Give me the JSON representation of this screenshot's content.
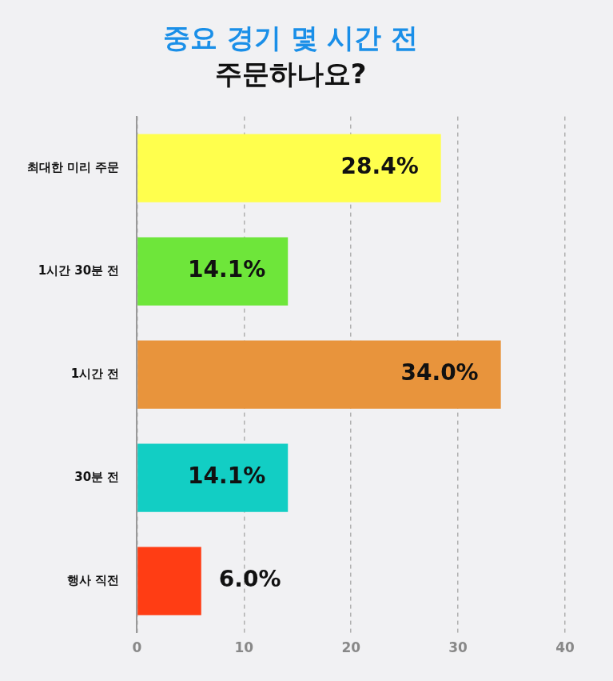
{
  "chart_data": {
    "type": "bar",
    "orientation": "horizontal",
    "title": "중요 경기 몇 시간 전",
    "subtitle": "주문하나요?",
    "categories": [
      "최대한 미리 주문",
      "1시간 30분 전",
      "1시간 전",
      "30분 전",
      "행사 직전"
    ],
    "values": [
      28.4,
      14.1,
      34.0,
      14.1,
      6.0
    ],
    "value_labels": [
      "28.4%",
      "14.1%",
      "34.0%",
      "14.1%",
      "6.0%"
    ],
    "colors": [
      "#ffff4d",
      "#6ee63a",
      "#e8943c",
      "#12cec4",
      "#ff3d14"
    ],
    "xlim": [
      0,
      40
    ],
    "xticks": [
      0,
      10,
      20,
      30,
      40
    ],
    "grid": true,
    "data_labels": true
  }
}
